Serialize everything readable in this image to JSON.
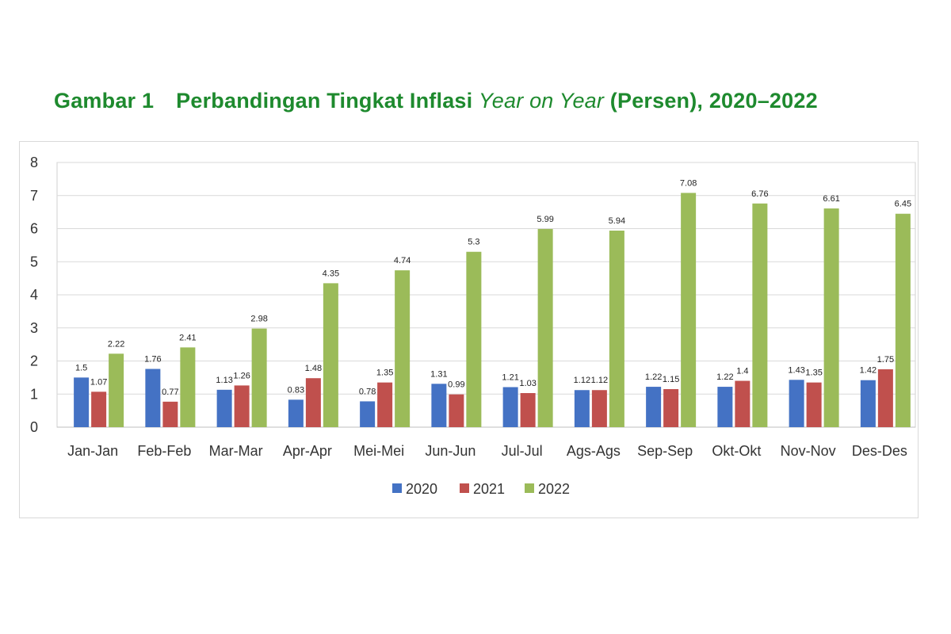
{
  "title": {
    "figure": "Gambar 1",
    "before": "Perbandingan Tingkat Inflasi ",
    "italic": "Year on Year",
    "after": " (Persen), 2020–2022"
  },
  "chart_data": {
    "type": "bar",
    "title": "Gambar 1 Perbandingan Tingkat Inflasi Year on Year (Persen), 2020–2022",
    "xlabel": "",
    "ylabel": "",
    "ylim": [
      0,
      8
    ],
    "yticks": [
      0,
      1,
      2,
      3,
      4,
      5,
      6,
      7,
      8
    ],
    "grid": true,
    "legend": "bottom-center",
    "categories": [
      "Jan-Jan",
      "Feb-Feb",
      "Mar-Mar",
      "Apr-Apr",
      "Mei-Mei",
      "Jun-Jun",
      "Jul-Jul",
      "Ags-Ags",
      "Sep-Sep",
      "Okt-Okt",
      "Nov-Nov",
      "Des-Des"
    ],
    "series": [
      {
        "name": "2020",
        "color": "#4472c4",
        "values": [
          1.5,
          1.76,
          1.13,
          0.83,
          0.78,
          1.31,
          1.21,
          1.12,
          1.22,
          1.22,
          1.43,
          1.42
        ]
      },
      {
        "name": "2021",
        "color": "#c0504d",
        "values": [
          1.07,
          0.77,
          1.26,
          1.48,
          1.35,
          0.99,
          1.03,
          1.12,
          1.15,
          1.4,
          1.35,
          1.75
        ]
      },
      {
        "name": "2022",
        "color": "#9bbb59",
        "values": [
          2.22,
          2.41,
          2.98,
          4.35,
          4.74,
          5.3,
          5.99,
          5.94,
          7.08,
          6.76,
          6.61,
          6.45
        ]
      }
    ]
  }
}
